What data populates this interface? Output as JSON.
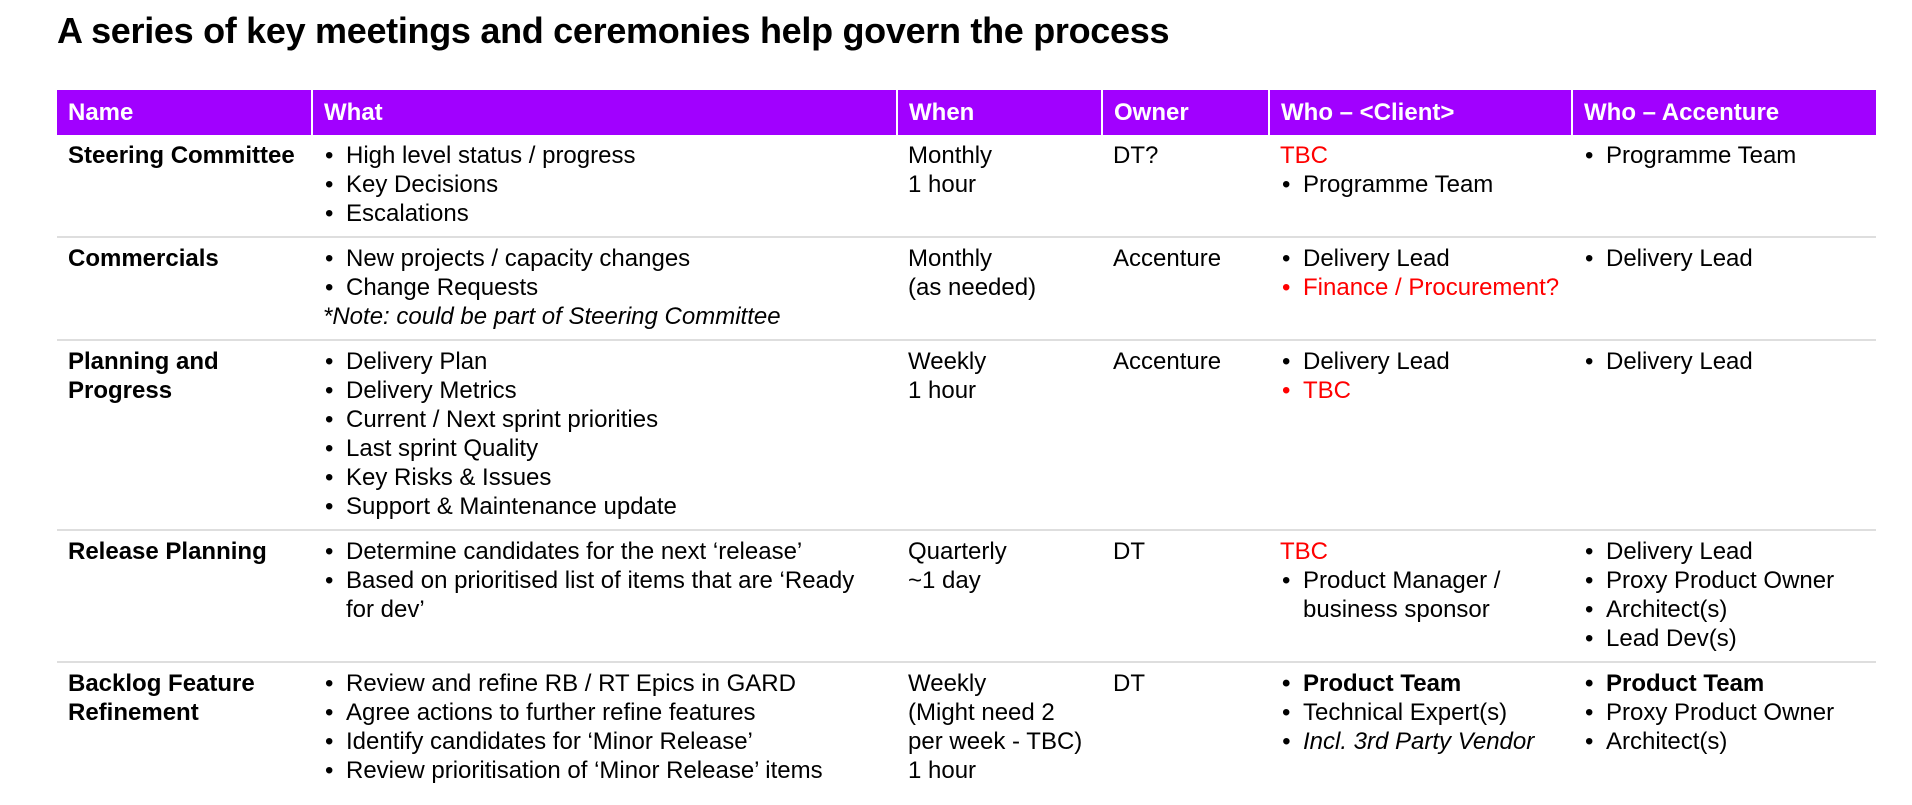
{
  "title": "A series of key meetings and ceremonies help govern the process",
  "colors": {
    "header_bg": "#a100ff",
    "header_text": "#ffffff",
    "highlight_text": "#ff0000",
    "row_divider": "#dedede"
  },
  "headers": [
    "Name",
    "What",
    "When",
    "Owner",
    "Who – <Client>",
    "Who – Accenture"
  ],
  "rows": [
    {
      "name": "Steering Committee",
      "what": [
        "High level status / progress",
        "Key Decisions",
        "Escalations"
      ],
      "what_note": "",
      "when": [
        "Monthly",
        "1 hour"
      ],
      "owner": "DT?",
      "client_lead": "TBC",
      "client": [
        "Programme Team"
      ],
      "accenture": [
        "Programme Team"
      ]
    },
    {
      "name": "Commercials",
      "what": [
        "New projects / capacity changes",
        "Change Requests"
      ],
      "what_note": "*Note: could be part of Steering Committee",
      "when": [
        "Monthly",
        "(as needed)"
      ],
      "owner": "Accenture",
      "client_lead": "",
      "client": [
        "Delivery Lead",
        "Finance / Procurement?"
      ],
      "accenture": [
        "Delivery Lead"
      ]
    },
    {
      "name": "Planning and Progress",
      "what": [
        "Delivery Plan",
        "Delivery Metrics",
        "Current / Next sprint priorities",
        "Last sprint Quality",
        "Key Risks & Issues",
        "Support & Maintenance update"
      ],
      "what_note": "",
      "when": [
        "Weekly",
        "1 hour"
      ],
      "owner": "Accenture",
      "client_lead": "",
      "client": [
        "Delivery Lead",
        "TBC"
      ],
      "accenture": [
        "Delivery Lead"
      ]
    },
    {
      "name": "Release Planning",
      "what": [
        "Determine candidates for the next ‘release’",
        "Based on prioritised list of items that are ‘Ready for dev’"
      ],
      "what_note": "",
      "when": [
        "Quarterly",
        "~1 day"
      ],
      "owner": "DT",
      "client_lead": "TBC",
      "client": [
        "Product Manager / business sponsor"
      ],
      "accenture": [
        "Delivery Lead",
        "Proxy Product Owner",
        "Architect(s)",
        "Lead Dev(s)"
      ]
    },
    {
      "name": "Backlog Feature Refinement",
      "what": [
        "Review and refine RB / RT Epics in GARD",
        "Agree actions to further refine features",
        "Identify candidates for ‘Minor Release’",
        "Review prioritisation of ‘Minor Release’ items"
      ],
      "what_note": "",
      "when": [
        "Weekly",
        "(Might need 2 per week - TBC)",
        "1 hour"
      ],
      "owner": "DT",
      "client_lead": "",
      "client": [
        "Product Team",
        "Technical Expert(s)",
        "Incl. 3rd Party Vendor"
      ],
      "accenture": [
        "Product Team",
        "Proxy Product Owner",
        "Architect(s)"
      ]
    }
  ]
}
